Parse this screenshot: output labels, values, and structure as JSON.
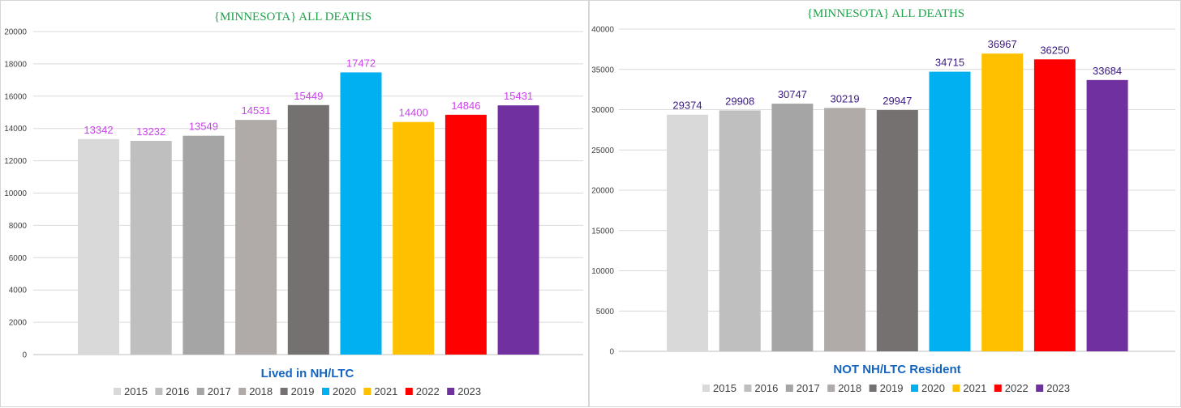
{
  "chart_data": [
    {
      "type": "bar",
      "title": "{MINNESOTA}   ALL DEATHS",
      "subtitle": "Lived in NH/LTC",
      "categories": [
        "2015",
        "2016",
        "2017",
        "2018",
        "2019",
        "2020",
        "2021",
        "2022",
        "2023"
      ],
      "values": [
        13342,
        13232,
        13549,
        14531,
        15449,
        17472,
        14400,
        14846,
        15431
      ],
      "colors": [
        "#d9d9d9",
        "#bfbfbf",
        "#a5a5a5",
        "#b0aba8",
        "#767171",
        "#00b0f0",
        "#ffc000",
        "#ff0000",
        "#7030a0"
      ],
      "label_color": "#cc44ee",
      "ylim": [
        0,
        20000
      ],
      "yticks": [
        0,
        2000,
        4000,
        6000,
        8000,
        10000,
        12000,
        14000,
        16000,
        18000,
        20000
      ],
      "legend": "bottom",
      "grid": true
    },
    {
      "type": "bar",
      "title": "{MINNESOTA}   ALL DEATHS",
      "subtitle": "NOT NH/LTC Resident",
      "categories": [
        "2015",
        "2016",
        "2017",
        "2018",
        "2019",
        "2020",
        "2021",
        "2022",
        "2023"
      ],
      "values": [
        29374,
        29908,
        30747,
        30219,
        29947,
        34715,
        36967,
        36250,
        33684
      ],
      "colors": [
        "#d9d9d9",
        "#bfbfbf",
        "#a5a5a5",
        "#b0aba8",
        "#767171",
        "#00b0f0",
        "#ffc000",
        "#ff0000",
        "#7030a0"
      ],
      "label_color": "#3a1a80",
      "ylim": [
        0,
        40000
      ],
      "yticks": [
        0,
        5000,
        10000,
        15000,
        20000,
        25000,
        30000,
        35000,
        40000
      ],
      "legend": "bottom",
      "grid": true
    }
  ]
}
